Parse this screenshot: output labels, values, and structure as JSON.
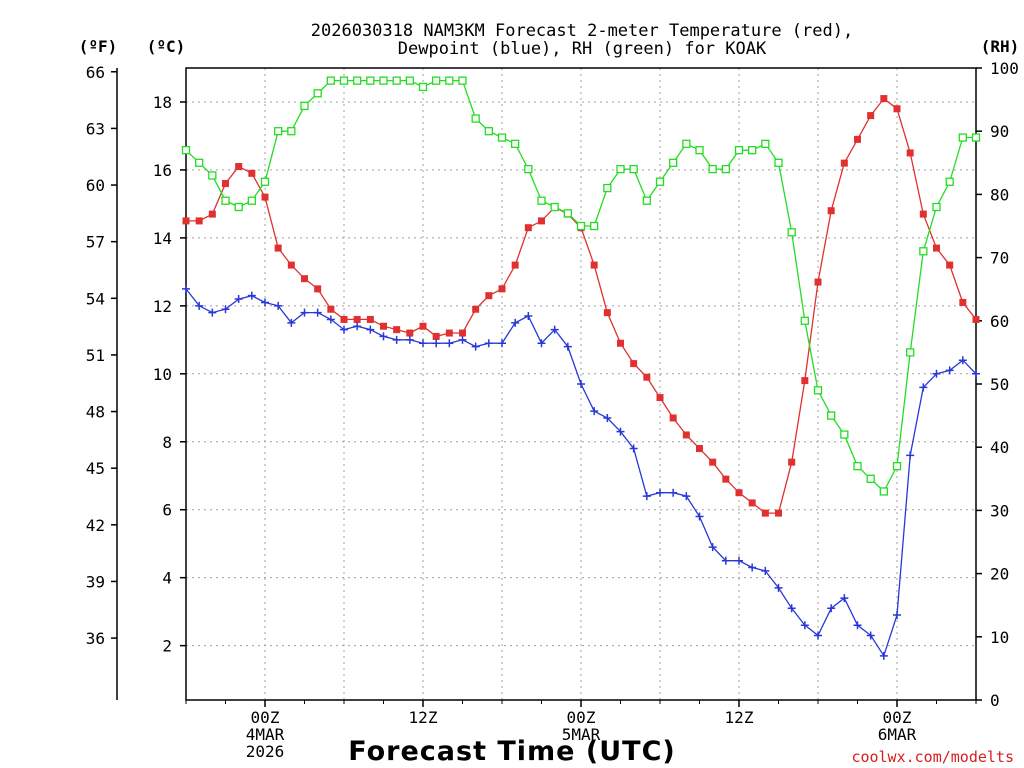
{
  "chart_data": {
    "type": "line",
    "title_line1": "2026030318 NAM3KM Forecast 2-meter Temperature (red),",
    "title_line2": "Dewpoint (blue), RH (green) for KOAK",
    "xlabel": "Forecast Time (UTC)",
    "credit": "coolwx.com/modelts",
    "unit_f": "(ºF)",
    "unit_c": "(ºC)",
    "unit_rh": "(RH)",
    "x_hours_start": 18,
    "x_step_hours": 1,
    "xlim_hours": [
      18,
      78
    ],
    "c_axis": {
      "lim": [
        0.4,
        19.0
      ],
      "ticks": [
        "2",
        "4",
        "6",
        "8",
        "10",
        "12",
        "14",
        "16",
        "18"
      ]
    },
    "f_axis": {
      "ticks": [
        "36",
        "39",
        "42",
        "45",
        "48",
        "51",
        "54",
        "57",
        "60",
        "63",
        "66"
      ]
    },
    "rh_axis": {
      "lim": [
        0,
        100
      ],
      "ticks": [
        "0",
        "10",
        "20",
        "30",
        "40",
        "50",
        "60",
        "70",
        "80",
        "90",
        "100"
      ]
    },
    "x_ticks": [
      {
        "hour": 24,
        "line1": "00Z",
        "line2": "4MAR",
        "line3": "2026"
      },
      {
        "hour": 36,
        "line1": "12Z",
        "line2": "",
        "line3": ""
      },
      {
        "hour": 48,
        "line1": "00Z",
        "line2": "5MAR",
        "line3": ""
      },
      {
        "hour": 60,
        "line1": "12Z",
        "line2": "",
        "line3": ""
      },
      {
        "hour": 72,
        "line1": "00Z",
        "line2": "6MAR",
        "line3": ""
      }
    ],
    "series": [
      {
        "name": "2-meter Temperature",
        "color": "#e03030",
        "marker": "square-filled",
        "axis": "C",
        "values": [
          14.5,
          14.5,
          14.7,
          15.6,
          16.1,
          15.9,
          15.2,
          13.7,
          13.2,
          12.8,
          12.5,
          11.9,
          11.6,
          11.6,
          11.6,
          11.4,
          11.3,
          11.2,
          11.4,
          11.1,
          11.2,
          11.2,
          11.9,
          12.3,
          12.5,
          13.2,
          14.3,
          14.5,
          14.9,
          14.7,
          14.3,
          13.2,
          11.8,
          10.9,
          10.3,
          9.9,
          9.3,
          8.7,
          8.2,
          7.8,
          7.4,
          6.9,
          6.5,
          6.2,
          5.9,
          5.9,
          7.4,
          9.8,
          12.7,
          14.8,
          16.2,
          16.9,
          17.6,
          18.1,
          17.8,
          16.5,
          14.7,
          13.7,
          13.2,
          12.1,
          11.6
        ]
      },
      {
        "name": "Dewpoint",
        "color": "#2838d8",
        "marker": "plus",
        "axis": "C",
        "values": [
          12.5,
          12.0,
          11.8,
          11.9,
          12.2,
          12.3,
          12.1,
          12.0,
          11.5,
          11.8,
          11.8,
          11.6,
          11.3,
          11.4,
          11.3,
          11.1,
          11.0,
          11.0,
          10.9,
          10.9,
          10.9,
          11.0,
          10.8,
          10.9,
          10.9,
          11.5,
          11.7,
          10.9,
          11.3,
          10.8,
          9.7,
          8.9,
          8.7,
          8.3,
          7.8,
          6.4,
          6.5,
          6.5,
          6.4,
          5.8,
          4.9,
          4.5,
          4.5,
          4.3,
          4.2,
          3.7,
          3.1,
          2.6,
          2.3,
          3.1,
          3.4,
          2.6,
          2.3,
          1.7,
          2.9,
          7.6,
          9.6,
          10.0,
          10.1,
          10.4,
          10.0
        ]
      },
      {
        "name": "RH",
        "color": "#22dd22",
        "marker": "square-open",
        "axis": "RH",
        "values": [
          87,
          85,
          83,
          79,
          78,
          79,
          82,
          90,
          90,
          94,
          96,
          98,
          98,
          98,
          98,
          98,
          98,
          98,
          97,
          98,
          98,
          98,
          92,
          90,
          89,
          88,
          84,
          79,
          78,
          77,
          75,
          75,
          81,
          84,
          84,
          79,
          82,
          85,
          88,
          87,
          84,
          84,
          87,
          87,
          88,
          85,
          74,
          60,
          49,
          45,
          42,
          37,
          35,
          33,
          37,
          55,
          71,
          78,
          82,
          89,
          89
        ]
      }
    ]
  }
}
